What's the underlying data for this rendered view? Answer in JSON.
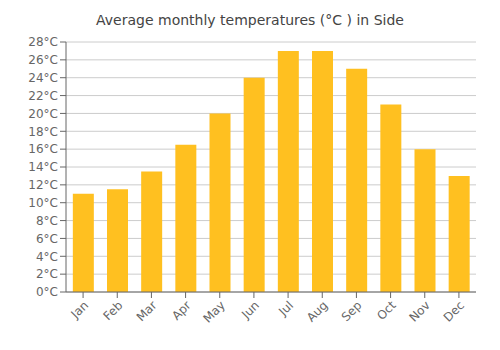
{
  "chart_data": {
    "type": "bar",
    "title": "Average monthly temperatures (°C ) in Side",
    "categories": [
      "Jan",
      "Feb",
      "Mar",
      "Apr",
      "May",
      "Jun",
      "Jul",
      "Aug",
      "Sep",
      "Oct",
      "Nov",
      "Dec"
    ],
    "values": [
      11,
      11.5,
      13.5,
      16.5,
      20,
      24,
      27,
      27,
      25,
      21,
      16,
      13
    ],
    "color": "#FFC020",
    "ylim": [
      0,
      28
    ],
    "yticks": [
      {
        "value": 0,
        "label": "0°C"
      },
      {
        "value": 2,
        "label": "2°C"
      },
      {
        "value": 4,
        "label": "4°C"
      },
      {
        "value": 6,
        "label": "6°C"
      },
      {
        "value": 8,
        "label": "8°C"
      },
      {
        "value": 10,
        "label": "10°C"
      },
      {
        "value": 12,
        "label": "12°C"
      },
      {
        "value": 14,
        "label": "14°C"
      },
      {
        "value": 16,
        "label": "16°C"
      },
      {
        "value": 18,
        "label": "18°C"
      },
      {
        "value": 20,
        "label": "20°C"
      },
      {
        "value": 22,
        "label": "22°C"
      },
      {
        "value": 24,
        "label": "24°C"
      },
      {
        "value": 26,
        "label": "26°C"
      },
      {
        "value": 28,
        "label": "28°C"
      }
    ],
    "grid": true
  }
}
